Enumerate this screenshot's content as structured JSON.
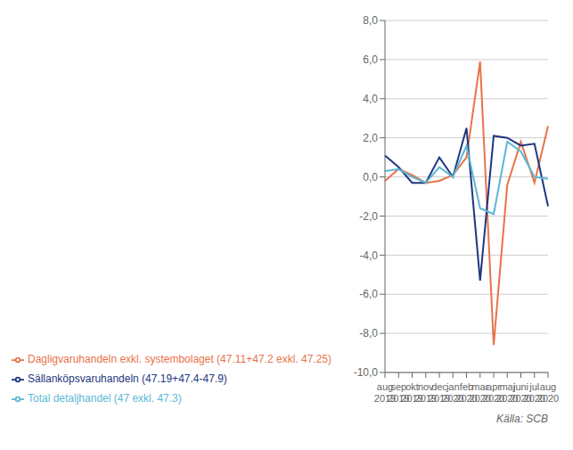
{
  "chart_data": {
    "type": "line",
    "categories": [
      "aug\n2019",
      "sep\n2019",
      "okt\n2019",
      "nov\n2019",
      "dec\n2019",
      "jan\n2020",
      "feb\n2020",
      "mar\n2020",
      "apr\n2020",
      "maj\n2020",
      "juni\n2020",
      "jul\n2020",
      "aug\n2020"
    ],
    "series": [
      {
        "name": "Dagligvaruhandeln exkl. systembolaget (47.11+47.2 exkl. 47.25)",
        "color": "#E8734A",
        "values": [
          -0.2,
          0.4,
          0.1,
          -0.3,
          -0.2,
          0.1,
          1.0,
          5.9,
          -8.6,
          -0.4,
          1.8,
          -0.3,
          2.6
        ]
      },
      {
        "name": "Sällanköpsvaruhandeln (47.19+47.4-47.9)",
        "color": "#1F3680",
        "values": [
          1.1,
          0.5,
          -0.3,
          -0.3,
          1.0,
          0.0,
          2.5,
          -5.3,
          2.1,
          2.0,
          1.6,
          1.7,
          -1.5
        ]
      },
      {
        "name": "Total detaljhandel (47 exkl. 47.3)",
        "color": "#5BB8D4",
        "values": [
          0.3,
          0.4,
          0.0,
          -0.3,
          0.5,
          0.0,
          1.6,
          -1.6,
          -1.9,
          1.8,
          1.3,
          0.0,
          -0.1
        ]
      }
    ],
    "ylim": [
      -10,
      8
    ],
    "yticks": [
      {
        "value": -10,
        "label": "-10,0"
      },
      {
        "value": -8,
        "label": "-8,0"
      },
      {
        "value": -6,
        "label": "-6,0"
      },
      {
        "value": -4,
        "label": "-4,0"
      },
      {
        "value": -2,
        "label": "-2,0"
      },
      {
        "value": 0,
        "label": "0,0"
      },
      {
        "value": 2,
        "label": "2,0"
      },
      {
        "value": 4,
        "label": "4,0"
      },
      {
        "value": 6,
        "label": "6,0"
      },
      {
        "value": 8,
        "label": "8,0"
      }
    ],
    "grid": true,
    "legend": "bottom left",
    "annotations": [
      "Källa: SCB"
    ]
  }
}
